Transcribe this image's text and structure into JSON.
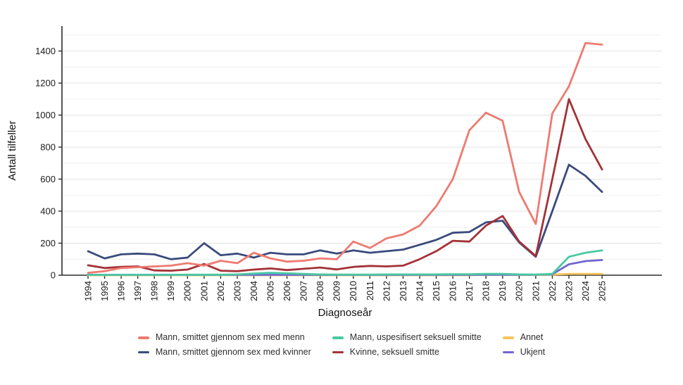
{
  "page": {
    "background": "#ffffff"
  },
  "axes": {
    "xlabel": "Diagnoseår",
    "ylabel": "Antall tilfeller"
  },
  "colors": {
    "msm": "#ee7a70",
    "msk": "#3a4a7c",
    "uspes": "#49c9a2",
    "kvinne": "#a33237",
    "annet": "#f7c45e",
    "ukjent": "#7166d2",
    "grid_major": "#e2e2e2",
    "grid_minor": "#f1f1f1",
    "axis": "#2b2b2b",
    "tick_text": "#1a1a1a"
  },
  "chart_data": {
    "type": "line",
    "title": "",
    "xlabel": "Diagnoseår",
    "ylabel": "Antall tilfeller",
    "ylim": [
      0,
      1560
    ],
    "yticks": [
      0,
      200,
      400,
      600,
      800,
      1000,
      1200,
      1400
    ],
    "grid": "horizontal gridlines every 100 (major every 200)",
    "legend_position": "bottom",
    "x": [
      1994,
      1995,
      1996,
      1997,
      1998,
      1999,
      2000,
      2001,
      2002,
      2003,
      2004,
      2005,
      2006,
      2007,
      2008,
      2009,
      2010,
      2011,
      2012,
      2013,
      2014,
      2015,
      2016,
      2017,
      2018,
      2019,
      2020,
      2021,
      2022,
      2023,
      2024,
      2025
    ],
    "series": [
      {
        "key": "msm",
        "name": "Mann, smittet gjennom sex med menn",
        "values": [
          15,
          25,
          45,
          50,
          55,
          60,
          75,
          60,
          90,
          75,
          140,
          105,
          85,
          90,
          105,
          100,
          210,
          170,
          230,
          255,
          310,
          430,
          600,
          905,
          1015,
          965,
          520,
          320,
          1010,
          1180,
          1450,
          1440
        ]
      },
      {
        "key": "msk",
        "name": "Mann, smittet gjennom sex med kvinner",
        "values": [
          150,
          105,
          130,
          135,
          130,
          100,
          110,
          200,
          125,
          135,
          110,
          140,
          130,
          130,
          155,
          135,
          155,
          140,
          150,
          160,
          190,
          220,
          265,
          270,
          330,
          340,
          205,
          115,
          400,
          690,
          620,
          520
        ]
      },
      {
        "key": "uspes",
        "name": "Mann, uspesifisert seksuell smitte",
        "values": [
          2,
          2,
          2,
          2,
          2,
          2,
          3,
          3,
          3,
          5,
          10,
          15,
          12,
          8,
          5,
          4,
          4,
          4,
          5,
          5,
          5,
          5,
          6,
          6,
          8,
          8,
          5,
          4,
          8,
          115,
          140,
          155
        ]
      },
      {
        "key": "kvinne",
        "name": "Kvinne, seksuell smitte",
        "values": [
          62,
          45,
          52,
          55,
          30,
          28,
          35,
          70,
          28,
          25,
          35,
          42,
          32,
          40,
          48,
          36,
          52,
          58,
          55,
          60,
          100,
          150,
          215,
          210,
          310,
          370,
          210,
          120,
          600,
          1100,
          850,
          660
        ]
      },
      {
        "key": "annet",
        "name": "Annet",
        "values": [
          0,
          0,
          0,
          0,
          0,
          0,
          0,
          0,
          0,
          0,
          0,
          0,
          0,
          0,
          0,
          0,
          0,
          0,
          0,
          0,
          0,
          0,
          0,
          0,
          2,
          2,
          2,
          2,
          4,
          8,
          8,
          8
        ]
      },
      {
        "key": "ukjent",
        "name": "Ukjent",
        "values": [
          3,
          2,
          2,
          2,
          2,
          2,
          2,
          2,
          2,
          2,
          2,
          2,
          2,
          2,
          2,
          2,
          2,
          2,
          2,
          2,
          2,
          2,
          2,
          2,
          3,
          3,
          3,
          3,
          6,
          68,
          88,
          95
        ]
      }
    ]
  }
}
